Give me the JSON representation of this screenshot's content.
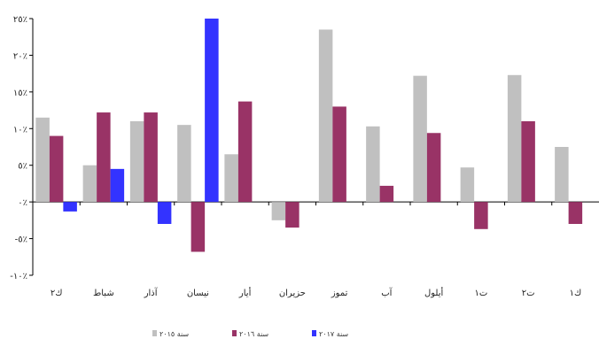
{
  "chart_data": {
    "type": "bar",
    "title": "",
    "xlabel": "",
    "ylabel": "",
    "ylim": [
      -10,
      25
    ],
    "yticks": [
      {
        "value": 25,
        "label": "٢٥٪"
      },
      {
        "value": 20,
        "label": "٢٠٪"
      },
      {
        "value": 15,
        "label": "١٥٪"
      },
      {
        "value": 10,
        "label": "١٠٪"
      },
      {
        "value": 5,
        "label": "٥٪"
      },
      {
        "value": 0,
        "label": "٠٪"
      },
      {
        "value": -5,
        "label": "-٥٪"
      },
      {
        "value": -10,
        "label": "-١٠٪"
      }
    ],
    "categories": [
      "ك٢",
      "شباط",
      "آذار",
      "نيسان",
      "أيار",
      "حزيران",
      "تموز",
      "آب",
      "أيلول",
      "ت١",
      "ت٢",
      "ك١"
    ],
    "series": [
      {
        "name": "سنة ٢٠١٥",
        "color": "#c0c0c0",
        "values": [
          11.5,
          5,
          11,
          10.5,
          6.5,
          -2.5,
          23.5,
          10.3,
          17.2,
          4.7,
          17.3,
          7.5
        ]
      },
      {
        "name": "سنة ٢٠١٦",
        "color": "#993366",
        "values": [
          9,
          12.2,
          12.2,
          -6.8,
          13.7,
          -3.5,
          13,
          2.2,
          9.4,
          -3.7,
          11,
          -3
        ]
      },
      {
        "name": "سنة ٢٠١٧",
        "color": "#3333ff",
        "values": [
          -1.3,
          4.5,
          -3,
          25,
          null,
          null,
          null,
          null,
          null,
          null,
          null,
          null
        ]
      }
    ],
    "grid": false,
    "legend": "bottom"
  }
}
